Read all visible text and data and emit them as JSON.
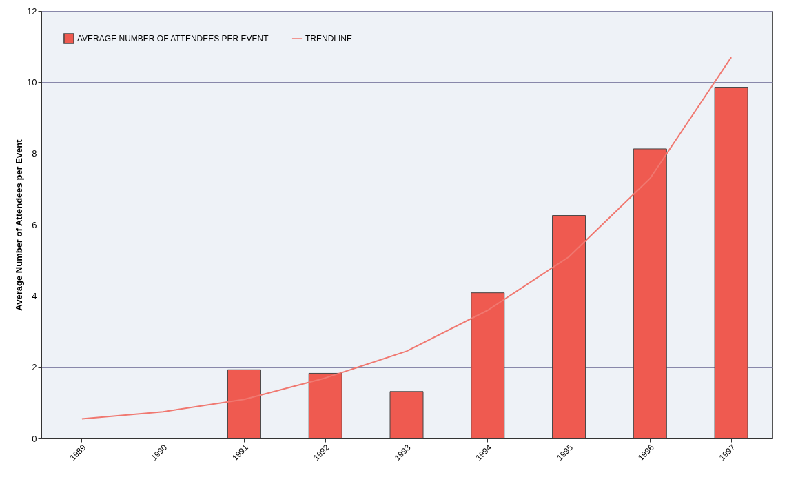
{
  "chart_data": {
    "type": "bar",
    "ylabel": "Average Number of Attendees per Event",
    "categories": [
      "1989",
      "1990",
      "1991",
      "1992",
      "1993",
      "1994",
      "1995",
      "1996",
      "1997"
    ],
    "series": [
      {
        "name": "AVERAGE NUMBER OF ATTENDEES PER EVENT",
        "color": "#ef5a50",
        "values": [
          null,
          null,
          1.93,
          1.83,
          1.32,
          4.09,
          6.26,
          8.13,
          9.86
        ]
      },
      {
        "name": "TRENDLINE",
        "type": "line",
        "color": "#f07870",
        "values": [
          0.55,
          0.75,
          1.1,
          1.7,
          2.45,
          3.6,
          5.1,
          7.3,
          10.7
        ]
      }
    ],
    "ylim": [
      0,
      12
    ],
    "yticks": [
      0,
      2,
      4,
      6,
      8,
      10,
      12
    ],
    "grid": "y",
    "legend": "top left"
  }
}
